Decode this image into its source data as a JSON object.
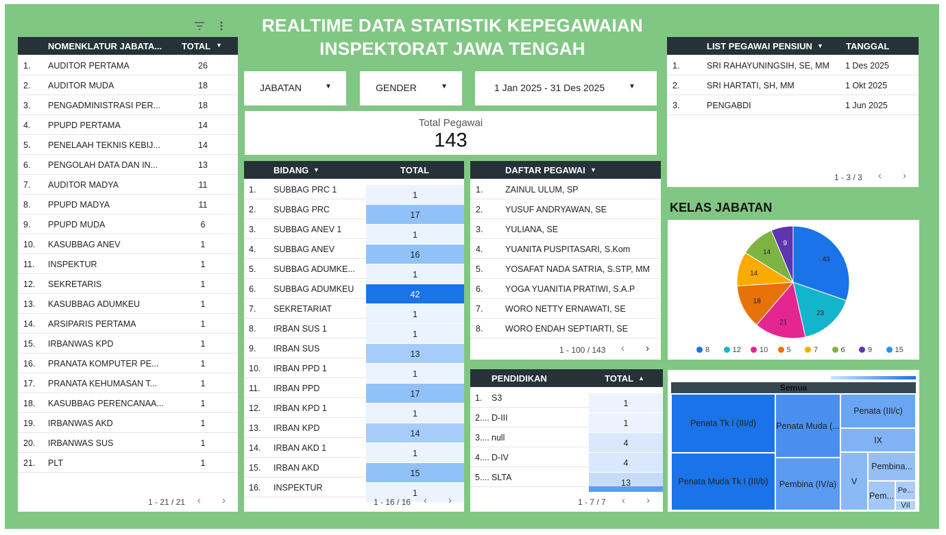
{
  "title": {
    "line1": "REALTIME DATA STATISTIK KEPEGAWAIAN",
    "line2": "INSPEKTORAT JAWA TENGAH"
  },
  "colors": {
    "background": "#81c784",
    "header": "#263238",
    "accent": "#1a73e8"
  },
  "icons": {
    "filter": "filter-icon",
    "more": "more-vert-icon",
    "caret": "caret-down-icon",
    "prev": "chevron-left-icon",
    "next": "chevron-right-icon"
  },
  "jabatan_table": {
    "col_name": "NOMENKLATUR JABATA...",
    "col_total": "TOTAL",
    "rows": [
      {
        "no": "1.",
        "name": "AUDITOR PERTAMA",
        "total": "26"
      },
      {
        "no": "2.",
        "name": "AUDITOR MUDA",
        "total": "18"
      },
      {
        "no": "3.",
        "name": "PENGADMINISTRASI PER...",
        "total": "18"
      },
      {
        "no": "4.",
        "name": "PPUPD PERTAMA",
        "total": "14"
      },
      {
        "no": "5.",
        "name": "PENELAAH TEKNIS KEBIJ...",
        "total": "14"
      },
      {
        "no": "6.",
        "name": "PENGOLAH DATA DAN IN...",
        "total": "13"
      },
      {
        "no": "7.",
        "name": "AUDITOR MADYA",
        "total": "11"
      },
      {
        "no": "8.",
        "name": "PPUPD MADYA",
        "total": "11"
      },
      {
        "no": "9.",
        "name": "PPUPD MUDA",
        "total": "6"
      },
      {
        "no": "10.",
        "name": "KASUBBAG ANEV",
        "total": "1"
      },
      {
        "no": "11.",
        "name": "INSPEKTUR",
        "total": "1"
      },
      {
        "no": "12.",
        "name": "SEKRETARIS",
        "total": "1"
      },
      {
        "no": "13.",
        "name": "KASUBBAG ADUMKEU",
        "total": "1"
      },
      {
        "no": "14.",
        "name": "ARSIPARIS PERTAMA",
        "total": "1"
      },
      {
        "no": "15.",
        "name": "IRBANWAS KPD",
        "total": "1"
      },
      {
        "no": "16.",
        "name": "PRANATA KOMPUTER PE...",
        "total": "1"
      },
      {
        "no": "17.",
        "name": "PRANATA KEHUMASAN T...",
        "total": "1"
      },
      {
        "no": "18.",
        "name": "KASUBBAG PERENCANAA...",
        "total": "1"
      },
      {
        "no": "19.",
        "name": "IRBANWAS AKD",
        "total": "1"
      },
      {
        "no": "20.",
        "name": "IRBANWAS SUS",
        "total": "1"
      },
      {
        "no": "21.",
        "name": "PLT",
        "total": "1"
      }
    ],
    "pager": "1 - 21 / 21"
  },
  "filters": {
    "jabatan": "JABATAN",
    "gender": "GENDER",
    "date_range": "1 Jan 2025 - 31 Des 2025"
  },
  "scorecard": {
    "label": "Total Pegawai",
    "value": "143"
  },
  "bidang_table": {
    "col_name": "BIDANG",
    "col_total": "TOTAL",
    "rows": [
      {
        "no": "1.",
        "name": "SUBBAG PRC 1",
        "total": "1",
        "value": 1
      },
      {
        "no": "2.",
        "name": "SUBBAG PRC",
        "total": "17",
        "value": 17
      },
      {
        "no": "3.",
        "name": "SUBBAG ANEV 1",
        "total": "1",
        "value": 1
      },
      {
        "no": "4.",
        "name": "SUBBAG ANEV",
        "total": "16",
        "value": 16
      },
      {
        "no": "5.",
        "name": "SUBBAG ADUMKE...",
        "total": "1",
        "value": 1
      },
      {
        "no": "6.",
        "name": "SUBBAG ADUMKEU",
        "total": "42",
        "value": 42
      },
      {
        "no": "7.",
        "name": "SEKRETARIAT",
        "total": "1",
        "value": 1
      },
      {
        "no": "8.",
        "name": "IRBAN SUS 1",
        "total": "1",
        "value": 1
      },
      {
        "no": "9.",
        "name": "IRBAN SUS",
        "total": "13",
        "value": 13
      },
      {
        "no": "10.",
        "name": "IRBAN PPD 1",
        "total": "1",
        "value": 1
      },
      {
        "no": "11.",
        "name": "IRBAN PPD",
        "total": "17",
        "value": 17
      },
      {
        "no": "12.",
        "name": "IRBAN KPD 1",
        "total": "1",
        "value": 1
      },
      {
        "no": "13.",
        "name": "IRBAN KPD",
        "total": "14",
        "value": 14
      },
      {
        "no": "14.",
        "name": "IRBAN AKD 1",
        "total": "1",
        "value": 1
      },
      {
        "no": "15.",
        "name": "IRBAN AKD",
        "total": "15",
        "value": 15
      },
      {
        "no": "16.",
        "name": "INSPEKTUR",
        "total": "1",
        "value": 1
      }
    ],
    "pager": "1 - 16 / 16"
  },
  "pegawai_table": {
    "col_name": "DAFTAR PEGAWAI",
    "rows": [
      {
        "no": "1.",
        "name": "ZAINUL ULUM, SP"
      },
      {
        "no": "2.",
        "name": "YUSUF ANDRYAWAN, SE"
      },
      {
        "no": "3.",
        "name": "YULIANA, SE"
      },
      {
        "no": "4.",
        "name": "YUANITA PUSPITASARI, S.Kom"
      },
      {
        "no": "5.",
        "name": "YOSAFAT NADA SATRIA, S.STP, MM"
      },
      {
        "no": "6.",
        "name": "YOGA YUANITIA PRATIWI, S.A.P"
      },
      {
        "no": "7.",
        "name": "WORO NETTY ERNAWATI, SE"
      },
      {
        "no": "8.",
        "name": "WORO ENDAH SEPTIARTI, SE"
      }
    ],
    "pager": "1 - 100 / 143"
  },
  "pendidikan_table": {
    "col_name": "PENDIDIKAN",
    "col_total": "TOTAL",
    "rows": [
      {
        "no": "1.",
        "name": "S3",
        "total": "1",
        "value": 1
      },
      {
        "no": "2....",
        "name": "D-III",
        "total": "1",
        "value": 1
      },
      {
        "no": "3....",
        "name": "null",
        "total": "4",
        "value": 4
      },
      {
        "no": "4....",
        "name": "D-IV",
        "total": "4",
        "value": 4
      },
      {
        "no": "5....",
        "name": "SLTA",
        "total": "13",
        "value": 13
      }
    ],
    "pager": "1 - 7 / 7"
  },
  "pensiun_table": {
    "col_name": "LIST PEGAWAI PENSIUN",
    "col_date": "TANGGAL",
    "rows": [
      {
        "no": "1.",
        "name": "SRI RAHAYUNINGSIH, SE, MM",
        "date": "1 Des 2025"
      },
      {
        "no": "2.",
        "name": "SRI HARTATI, SH, MM",
        "date": "1 Okt 2025"
      },
      {
        "no": "3.",
        "name": "PENGABDI",
        "date": "1 Jun 2025"
      }
    ],
    "pager": "1 - 3 / 3"
  },
  "kelas_jabatan": {
    "title": "KELAS JABATAN"
  },
  "chart_data": [
    {
      "type": "pie",
      "title": "KELAS JABATAN",
      "slices": [
        {
          "name": "8",
          "value": 43,
          "color": "#1a73e8"
        },
        {
          "name": "12",
          "value": 23,
          "color": "#12b5cb"
        },
        {
          "name": "10",
          "value": 21,
          "color": "#e52592"
        },
        {
          "name": "5",
          "value": 18,
          "color": "#e8710a"
        },
        {
          "name": "7",
          "value": 14,
          "color": "#f9ab00"
        },
        {
          "name": "6",
          "value": 14,
          "color": "#7cb342"
        },
        {
          "name": "9",
          "value": 9,
          "color": "#5e35b1"
        },
        {
          "name": "15",
          "value": 0,
          "color": "#2196f3"
        }
      ],
      "legend": "bottom"
    },
    {
      "type": "treemap",
      "root": "Semua",
      "items": [
        {
          "name": "Penata Tk I (III/d)",
          "label": "Penata Tk I (III/d)",
          "color": "#1a73e8"
        },
        {
          "name": "Penata Muda Tk I (III/b)",
          "label": "Penata Muda Tk I (III/b)",
          "color": "#1a73e8"
        },
        {
          "name": "Penata Muda",
          "label": "Penata Muda (...",
          "color": "#4a8ff0"
        },
        {
          "name": "Pembina (IV/a)",
          "label": "Pembina (IV/a)",
          "color": "#5b9bf2"
        },
        {
          "name": "Penata (III/c)",
          "label": "Penata (III/c)",
          "color": "#6aa5f3"
        },
        {
          "name": "IX",
          "label": "IX",
          "color": "#80b2f5"
        },
        {
          "name": "V",
          "label": "V",
          "color": "#8ab9f6"
        },
        {
          "name": "Pembina",
          "label": "Pembina...",
          "color": "#94bff6"
        },
        {
          "name": "Pem",
          "label": "Pem...",
          "color": "#a3c8f7"
        },
        {
          "name": "Pe",
          "label": "Pe...",
          "color": "#aacdf8"
        },
        {
          "name": "VII",
          "label": "VII",
          "color": "#b2d2f8"
        }
      ]
    }
  ]
}
